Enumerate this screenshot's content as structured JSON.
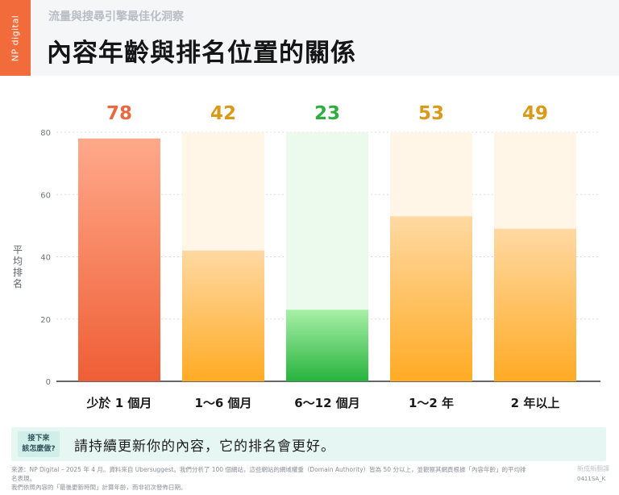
{
  "brand": {
    "logo_text": "NP digital"
  },
  "header": {
    "subtitle": "流量與搜尋引擎最佳化洞察",
    "title": "內容年齡與排名位置的關係"
  },
  "chart_data": {
    "type": "bar",
    "categories": [
      "少於 1 個月",
      "1～6 個月",
      "6～12 個月",
      "1～2 年",
      "2 年以上"
    ],
    "values": [
      78,
      42,
      23,
      53,
      49
    ],
    "value_labels": [
      "78",
      "42",
      "23",
      "53",
      "49"
    ],
    "ylabel": "平均排名",
    "ylim": [
      0,
      80
    ],
    "yticks": [
      "0",
      "20",
      "40",
      "60",
      "80"
    ],
    "grid": true,
    "colors": {
      "bar_red": [
        "#ffa98a",
        "#ef5e35"
      ],
      "bar_orange": [
        "#ffd9a3",
        "#ffab24"
      ],
      "bar_green": [
        "#a8f0a8",
        "#27b33d"
      ],
      "label_red": "#e8693f",
      "label_orange": "#d99a1a",
      "label_green": "#2fae3f",
      "track_orange": "#fff6e8",
      "track_green": "#ecfaee"
    },
    "bar_styles": [
      "red",
      "orange",
      "green",
      "orange",
      "orange"
    ]
  },
  "tip": {
    "label_line1": "接下來",
    "label_line2": "該怎麼做?",
    "text": "請持續更新你的內容，它的排名會更好。"
  },
  "footnote": {
    "line1": "來源：NP Digital – 2025 年 4 月。資料來自 Ubersuggest。我們分析了 100 個網站，這些網站的網域權重（Domain Authority）皆為 50 分以上，並觀察其網頁根據「內容年齡」的平均排名表現。",
    "line2": "我們依照內容的「最後更新時間」計算年齡，而非初次發佈日期。"
  },
  "credit": {
    "text": "新成新翻譯",
    "code": "0411SA_K"
  }
}
